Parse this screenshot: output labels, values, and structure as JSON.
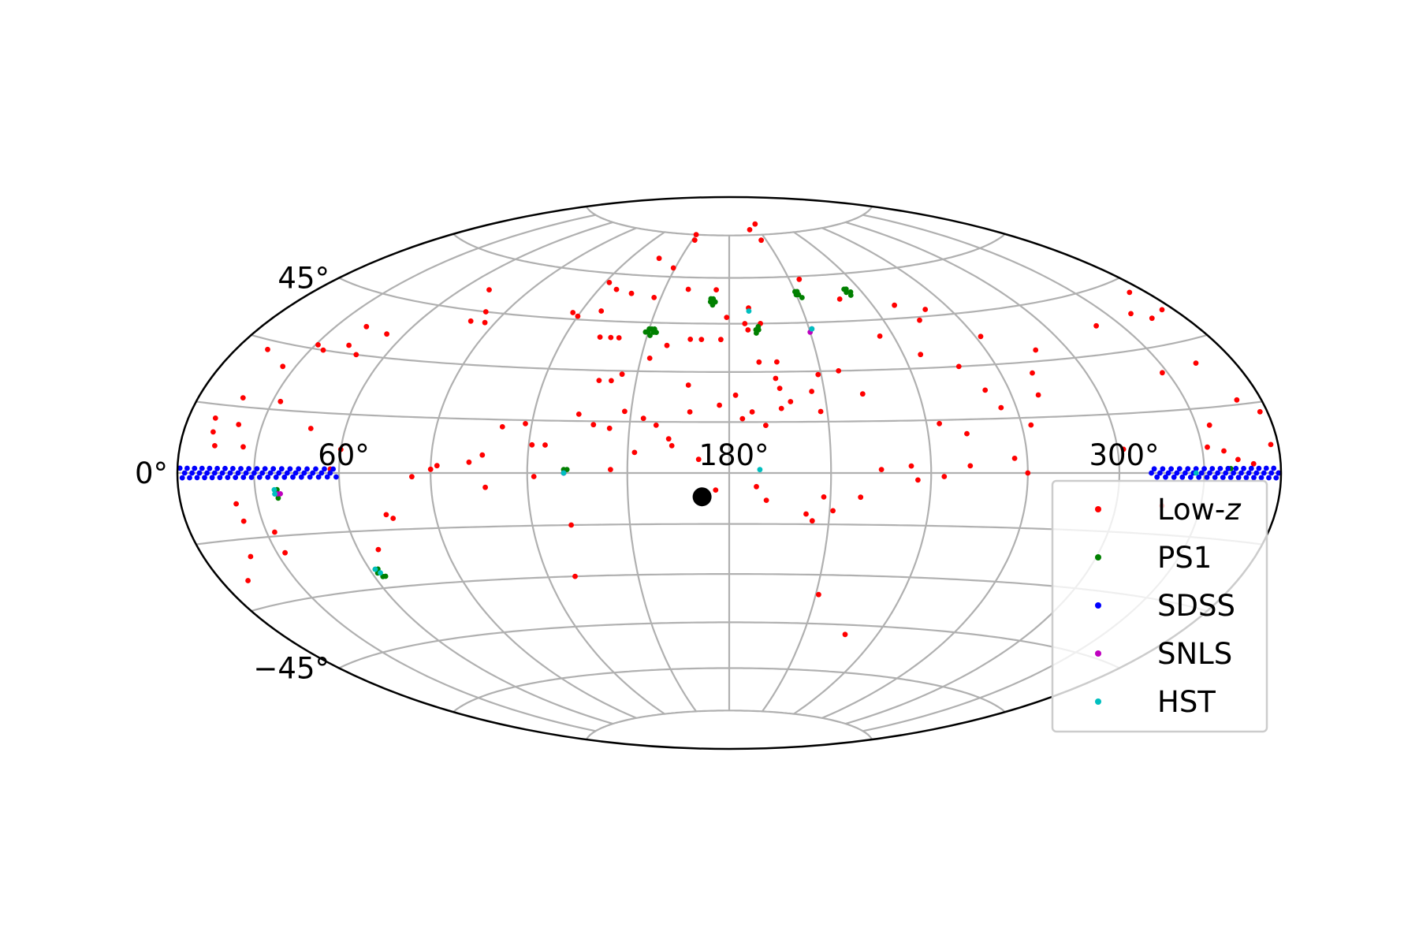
{
  "chart_data": {
    "type": "scatter",
    "projection": "hammer",
    "grid": true,
    "legend_position": "lower-right",
    "x_tick_labels": [
      "60°",
      "180°",
      "300°"
    ],
    "x_tick_values": [
      60,
      180,
      300
    ],
    "y_tick_labels": [
      "45°",
      "0°",
      "−45°"
    ],
    "y_tick_values": [
      45,
      0,
      -45
    ],
    "xlim": [
      0,
      360
    ],
    "ylim": [
      -90,
      90
    ],
    "marker": {
      "name": "",
      "x": 172,
      "y": -7,
      "color": "#000000"
    },
    "series": [
      {
        "name": "Low-z",
        "color": "#ff0000",
        "points": [
          [
            150,
            75
          ],
          [
            152,
            73
          ],
          [
            201,
            77
          ],
          [
            206,
            73
          ],
          [
            211,
            79
          ],
          [
            137,
            66
          ],
          [
            149,
            63
          ],
          [
            161,
            56
          ],
          [
            136,
            54
          ],
          [
            122,
            57
          ],
          [
            128,
            55
          ],
          [
            120,
            46
          ],
          [
            117,
            47
          ],
          [
            128,
            48
          ],
          [
            147,
            53
          ],
          [
            174,
            56
          ],
          [
            188,
            50
          ],
          [
            186,
            45
          ],
          [
            192,
            45
          ],
          [
            215,
            59
          ],
          [
            228,
            52
          ],
          [
            249,
            49
          ],
          [
            254,
            44
          ],
          [
            260,
            47
          ],
          [
            235,
            40
          ],
          [
            209,
            29
          ],
          [
            206,
            24
          ],
          [
            216,
            30
          ],
          [
            196,
            33
          ],
          [
            222,
            23
          ],
          [
            246,
            34
          ],
          [
            257,
            30
          ],
          [
            272,
            38
          ],
          [
            281,
            27
          ],
          [
            288,
            33
          ],
          [
            265,
            18
          ],
          [
            262,
            23
          ],
          [
            244,
            14
          ],
          [
            252,
            11
          ],
          [
            279,
            21
          ],
          [
            273,
            13
          ],
          [
            266,
            4
          ],
          [
            252,
            2
          ],
          [
            270,
            0
          ],
          [
            72,
            51
          ],
          [
            82,
            45
          ],
          [
            86,
            42
          ],
          [
            80,
            42
          ],
          [
            31,
            31
          ],
          [
            35,
            30
          ],
          [
            42,
            37
          ],
          [
            43,
            32
          ],
          [
            53,
            36
          ],
          [
            49,
            30
          ],
          [
            13,
            28
          ],
          [
            18,
            17
          ],
          [
            25,
            25
          ],
          [
            33,
            17
          ],
          [
            21,
            11
          ],
          [
            25,
            6
          ],
          [
            12,
            9
          ],
          [
            11,
            12
          ],
          [
            14,
            6
          ],
          [
            48,
            11
          ],
          [
            60,
            6
          ],
          [
            92,
            2
          ],
          [
            90,
            1
          ],
          [
            84,
            -1
          ],
          [
            57,
            1
          ],
          [
            22,
            -7
          ],
          [
            23,
            -11
          ],
          [
            33,
            -14
          ],
          [
            33,
            -19
          ],
          [
            11,
            -24
          ],
          [
            19,
            -19
          ],
          [
            74,
            -11
          ],
          [
            76,
            -12
          ],
          [
            67,
            -20
          ],
          [
            132,
            -15
          ],
          [
            129,
            -30
          ],
          [
            107,
            -4
          ],
          [
            102,
            3
          ],
          [
            106,
            5
          ],
          [
            122,
            -1
          ],
          [
            145,
            1
          ],
          [
            152,
            6
          ],
          [
            163,
            8
          ],
          [
            171,
            4
          ],
          [
            176,
            -5
          ],
          [
            173,
            -8
          ],
          [
            188,
            -4
          ],
          [
            203,
            -12
          ],
          [
            191,
            -8
          ],
          [
            208,
            -7
          ],
          [
            211,
            -11
          ],
          [
            205,
            -14
          ],
          [
            219,
            -7
          ],
          [
            236,
            -2
          ],
          [
            225,
            1
          ],
          [
            234,
            2
          ],
          [
            244,
            -1
          ],
          [
            121,
            8
          ],
          [
            125,
            8
          ],
          [
            118,
            14
          ],
          [
            111,
            13
          ],
          [
            134,
            17
          ],
          [
            139,
            14
          ],
          [
            144,
            13
          ],
          [
            148,
            18
          ],
          [
            154,
            16
          ],
          [
            158,
            14
          ],
          [
            162,
            10
          ],
          [
            168,
            18
          ],
          [
            177,
            20
          ],
          [
            182,
            23
          ],
          [
            187,
            18
          ],
          [
            184,
            16
          ],
          [
            196,
            19
          ],
          [
            199,
            21
          ],
          [
            208,
            18
          ],
          [
            191,
            14
          ],
          [
            142,
            27
          ],
          [
            138,
            27
          ],
          [
            145,
            29
          ],
          [
            167,
            26
          ],
          [
            195,
            28
          ],
          [
            190,
            33
          ],
          [
            158,
            38
          ],
          [
            153,
            34
          ],
          [
            133,
            40
          ],
          [
            137,
            40
          ],
          [
            140,
            40
          ],
          [
            166,
            40
          ],
          [
            170,
            40
          ],
          [
            177,
            40
          ],
          [
            179,
            47
          ],
          [
            187,
            43
          ],
          [
            196,
            25
          ],
          [
            302,
            6
          ],
          [
            316,
            -8
          ],
          [
            340,
            38
          ],
          [
            346,
            36
          ],
          [
            353,
            42
          ],
          [
            355,
            37
          ],
          [
            320,
            37
          ],
          [
            328,
            24
          ],
          [
            344,
            25
          ],
          [
            350,
            16
          ],
          [
            357,
            13
          ],
          [
            335,
            11
          ],
          [
            332,
            6
          ],
          [
            343,
            3
          ],
          [
            338,
            5
          ],
          [
            349,
            2
          ],
          [
            357,
            6
          ],
          [
            359,
            0
          ],
          [
            227,
            -48
          ],
          [
            211,
            -36
          ]
        ]
      },
      {
        "name": "PS1",
        "color": "#008000",
        "points": [
          [
            150,
            42
          ],
          [
            151,
            43
          ],
          [
            152,
            42
          ],
          [
            150,
            43
          ],
          [
            151,
            41
          ],
          [
            149,
            42
          ],
          [
            152,
            43
          ],
          [
            153,
            42
          ],
          [
            172,
            52
          ],
          [
            173,
            53
          ],
          [
            174,
            52
          ],
          [
            172,
            53
          ],
          [
            173,
            51
          ],
          [
            190,
            43
          ],
          [
            191,
            44
          ],
          [
            190,
            42
          ],
          [
            191,
            43
          ],
          [
            210,
            54
          ],
          [
            211,
            55
          ],
          [
            210,
            55
          ],
          [
            211,
            54
          ],
          [
            212,
            53
          ],
          [
            233,
            54
          ],
          [
            234,
            55
          ],
          [
            235,
            54
          ],
          [
            233,
            55
          ],
          [
            234,
            53
          ],
          [
            38,
            -4
          ],
          [
            38,
            -5
          ],
          [
            38,
            -6
          ],
          [
            62,
            -26
          ],
          [
            63,
            -27
          ],
          [
            64,
            -27
          ],
          [
            63,
            -25
          ],
          [
            62,
            -25
          ],
          [
            131,
            1
          ],
          [
            132,
            1
          ],
          [
            131,
            0
          ],
          [
            339,
            1
          ],
          [
            340,
            1
          ]
        ]
      },
      {
        "name": "SDSS",
        "color": "#0000ff",
        "points": [
          [
            1,
            1
          ],
          [
            2,
            -1
          ],
          [
            3,
            0
          ],
          [
            4,
            1
          ],
          [
            5,
            -1
          ],
          [
            6,
            0
          ],
          [
            7,
            1
          ],
          [
            8,
            -1
          ],
          [
            9,
            0
          ],
          [
            10,
            1
          ],
          [
            11,
            -1
          ],
          [
            12,
            0
          ],
          [
            13,
            1
          ],
          [
            14,
            -1
          ],
          [
            15,
            0
          ],
          [
            16,
            1
          ],
          [
            17,
            -1
          ],
          [
            18,
            0
          ],
          [
            19,
            1
          ],
          [
            20,
            -1
          ],
          [
            21,
            0
          ],
          [
            22,
            1
          ],
          [
            23,
            -1
          ],
          [
            24,
            0
          ],
          [
            25,
            1
          ],
          [
            26,
            -1
          ],
          [
            27,
            0
          ],
          [
            28,
            1
          ],
          [
            29,
            -1
          ],
          [
            30,
            0
          ],
          [
            31,
            1
          ],
          [
            32,
            -1
          ],
          [
            33,
            0
          ],
          [
            34,
            1
          ],
          [
            35,
            -1
          ],
          [
            36,
            0
          ],
          [
            37,
            1
          ],
          [
            38,
            -1
          ],
          [
            39,
            0
          ],
          [
            40,
            1
          ],
          [
            41,
            -1
          ],
          [
            42,
            0
          ],
          [
            43,
            1
          ],
          [
            44,
            -1
          ],
          [
            45,
            0
          ],
          [
            46,
            1
          ],
          [
            47,
            -1
          ],
          [
            48,
            0
          ],
          [
            49,
            1
          ],
          [
            50,
            -1
          ],
          [
            51,
            0
          ],
          [
            52,
            1
          ],
          [
            53,
            -1
          ],
          [
            54,
            0
          ],
          [
            55,
            1
          ],
          [
            56,
            -1
          ],
          [
            57,
            0
          ],
          [
            58,
            1
          ],
          [
            59,
            -1
          ],
          [
            311,
            0
          ],
          [
            312,
            1
          ],
          [
            313,
            -1
          ],
          [
            314,
            0
          ],
          [
            315,
            1
          ],
          [
            316,
            -1
          ],
          [
            317,
            0
          ],
          [
            318,
            1
          ],
          [
            319,
            -1
          ],
          [
            320,
            0
          ],
          [
            321,
            1
          ],
          [
            322,
            -1
          ],
          [
            323,
            0
          ],
          [
            324,
            1
          ],
          [
            325,
            -1
          ],
          [
            326,
            0
          ],
          [
            327,
            1
          ],
          [
            328,
            -1
          ],
          [
            329,
            0
          ],
          [
            330,
            1
          ],
          [
            331,
            -1
          ],
          [
            332,
            0
          ],
          [
            333,
            1
          ],
          [
            334,
            -1
          ],
          [
            335,
            0
          ],
          [
            336,
            1
          ],
          [
            337,
            -1
          ],
          [
            338,
            0
          ],
          [
            339,
            1
          ],
          [
            340,
            -1
          ],
          [
            341,
            0
          ],
          [
            342,
            1
          ],
          [
            343,
            -1
          ],
          [
            344,
            0
          ],
          [
            345,
            1
          ],
          [
            346,
            -1
          ],
          [
            347,
            0
          ],
          [
            348,
            1
          ],
          [
            349,
            -1
          ],
          [
            350,
            0
          ],
          [
            351,
            1
          ],
          [
            352,
            -1
          ],
          [
            353,
            0
          ],
          [
            354,
            1
          ],
          [
            355,
            -1
          ],
          [
            356,
            0
          ],
          [
            357,
            1
          ],
          [
            358,
            -1
          ],
          [
            359,
            0
          ],
          [
            131,
            0
          ]
        ]
      },
      {
        "name": "SNLS",
        "color": "#bf00bf",
        "points": [
          [
            39,
            -5
          ],
          [
            38,
            -5
          ],
          [
            211,
            43
          ],
          [
            210,
            42
          ],
          [
            131,
            0
          ]
        ]
      },
      {
        "name": "HST",
        "color": "#00bfbf",
        "points": [
          [
            188,
            49
          ],
          [
            189,
            1
          ],
          [
            62,
            -25
          ],
          [
            63,
            -26
          ],
          [
            37,
            -5
          ],
          [
            37,
            -4
          ],
          [
            211,
            43
          ],
          [
            131,
            0
          ],
          [
            327,
            0
          ]
        ]
      }
    ]
  }
}
